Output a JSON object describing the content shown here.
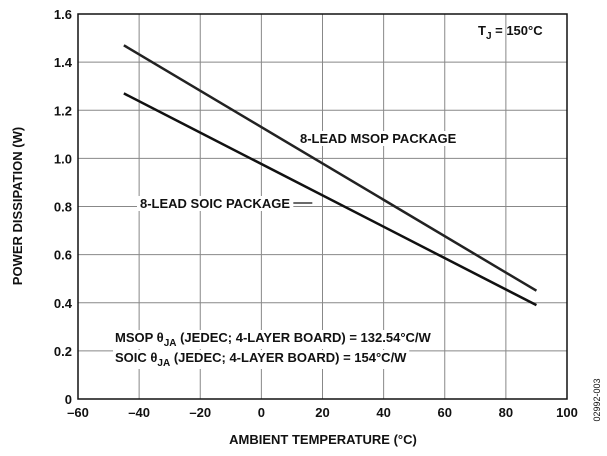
{
  "chart_data": {
    "type": "line",
    "x_label": "AMBIENT TEMPERATURE (°C)",
    "y_label": "POWER DISSIPATION (W)",
    "x": [
      -45,
      90
    ],
    "series": [
      {
        "name": "8-LEAD MSOP PACKAGE",
        "color": "#222222",
        "values": [
          1.47,
          0.45
        ]
      },
      {
        "name": "8-LEAD SOIC PACKAGE",
        "color": "#111111",
        "values": [
          1.27,
          0.39
        ]
      }
    ],
    "xlim": [
      -60,
      100
    ],
    "xticks": [
      {
        "value": -60,
        "label": "–60"
      },
      {
        "value": -40,
        "label": "–40"
      },
      {
        "value": -20,
        "label": "–20"
      },
      0,
      20,
      40,
      60,
      80,
      100
    ],
    "ylim": [
      0,
      1.6
    ],
    "yticks": [
      0,
      0.2,
      0.4,
      0.6,
      0.8,
      {
        "value": 1,
        "label": "1.0"
      },
      1.2,
      1.4,
      1.6
    ],
    "grid": true,
    "tj_note": {
      "main": "T",
      "sub": "J",
      "rest": " = 150°C"
    },
    "msop_note": {
      "main": "MSOP θ",
      "sub": "JA",
      "rest": " (JEDEC; 4-LAYER BOARD) = 132.54°C/W"
    },
    "soic_note": {
      "main": "SOIC θ",
      "sub": "JA",
      "rest": " (JEDEC; 4-LAYER BOARD) = 154°C/W"
    },
    "figure_id": "02992-003"
  }
}
